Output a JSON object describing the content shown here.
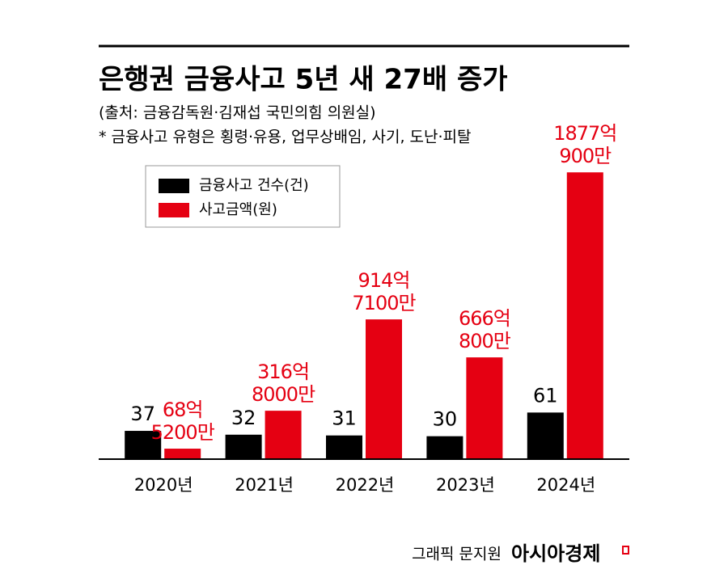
{
  "chart_data": {
    "type": "bar",
    "title": "은행권 금융사고 5년 새 27배 증가",
    "subtitle": "(출처: 금융감독원·김재섭 국민의힘 의원실)",
    "note": "* 금융사고 유형은 횡령·유용, 업무상배임, 사기, 도난·피탈",
    "categories": [
      "2020년",
      "2021년",
      "2022년",
      "2023년",
      "2024년"
    ],
    "series": [
      {
        "name": "금융사고 건수(건)",
        "color": "#000000",
        "values": [
          37,
          32,
          31,
          30,
          61
        ]
      },
      {
        "name": "사고금액(원)",
        "color": "#e50012",
        "axis": "y2",
        "values": [
          6852000000,
          31680000000,
          91471000000,
          66608000000,
          187709000000
        ],
        "value_labels": [
          "68억 5200만",
          "316억 8000만",
          "914억 7100만",
          "666억 800만",
          "1877억 900만"
        ]
      }
    ],
    "ylim": [
      0,
      400
    ],
    "y2lim": [
      0,
      200000000000
    ],
    "credit": "그래픽 문지원",
    "brand": "아시아경제"
  }
}
